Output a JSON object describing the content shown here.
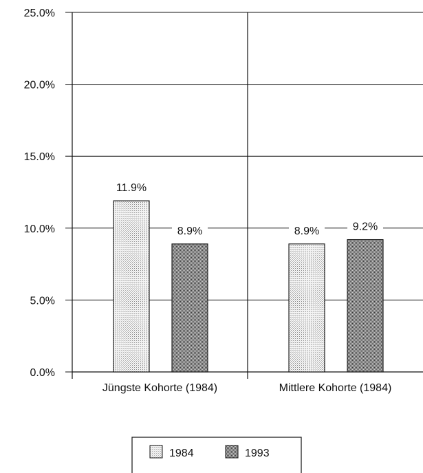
{
  "chart_data": {
    "type": "bar",
    "categories": [
      "Jüngste Kohorte (1984)",
      "Mittlere Kohorte (1984)"
    ],
    "series": [
      {
        "name": "1984",
        "values": [
          11.9,
          8.9
        ],
        "labels": [
          "11.9%",
          "8.9%"
        ],
        "color": "#e8e8e8"
      },
      {
        "name": "1993",
        "values": [
          8.9,
          9.2
        ],
        "labels": [
          "8.9%",
          "9.2%"
        ],
        "color": "#9a9a9a"
      }
    ],
    "ylim": [
      0,
      25
    ],
    "yticks": [
      {
        "value": 0,
        "label": "0.0%"
      },
      {
        "value": 5,
        "label": "5.0%"
      },
      {
        "value": 10,
        "label": "10.0%"
      },
      {
        "value": 15,
        "label": "15.0%"
      },
      {
        "value": 20,
        "label": "20.0%"
      },
      {
        "value": 25,
        "label": "25.0%"
      }
    ],
    "grid": true,
    "legend_position": "bottom"
  }
}
